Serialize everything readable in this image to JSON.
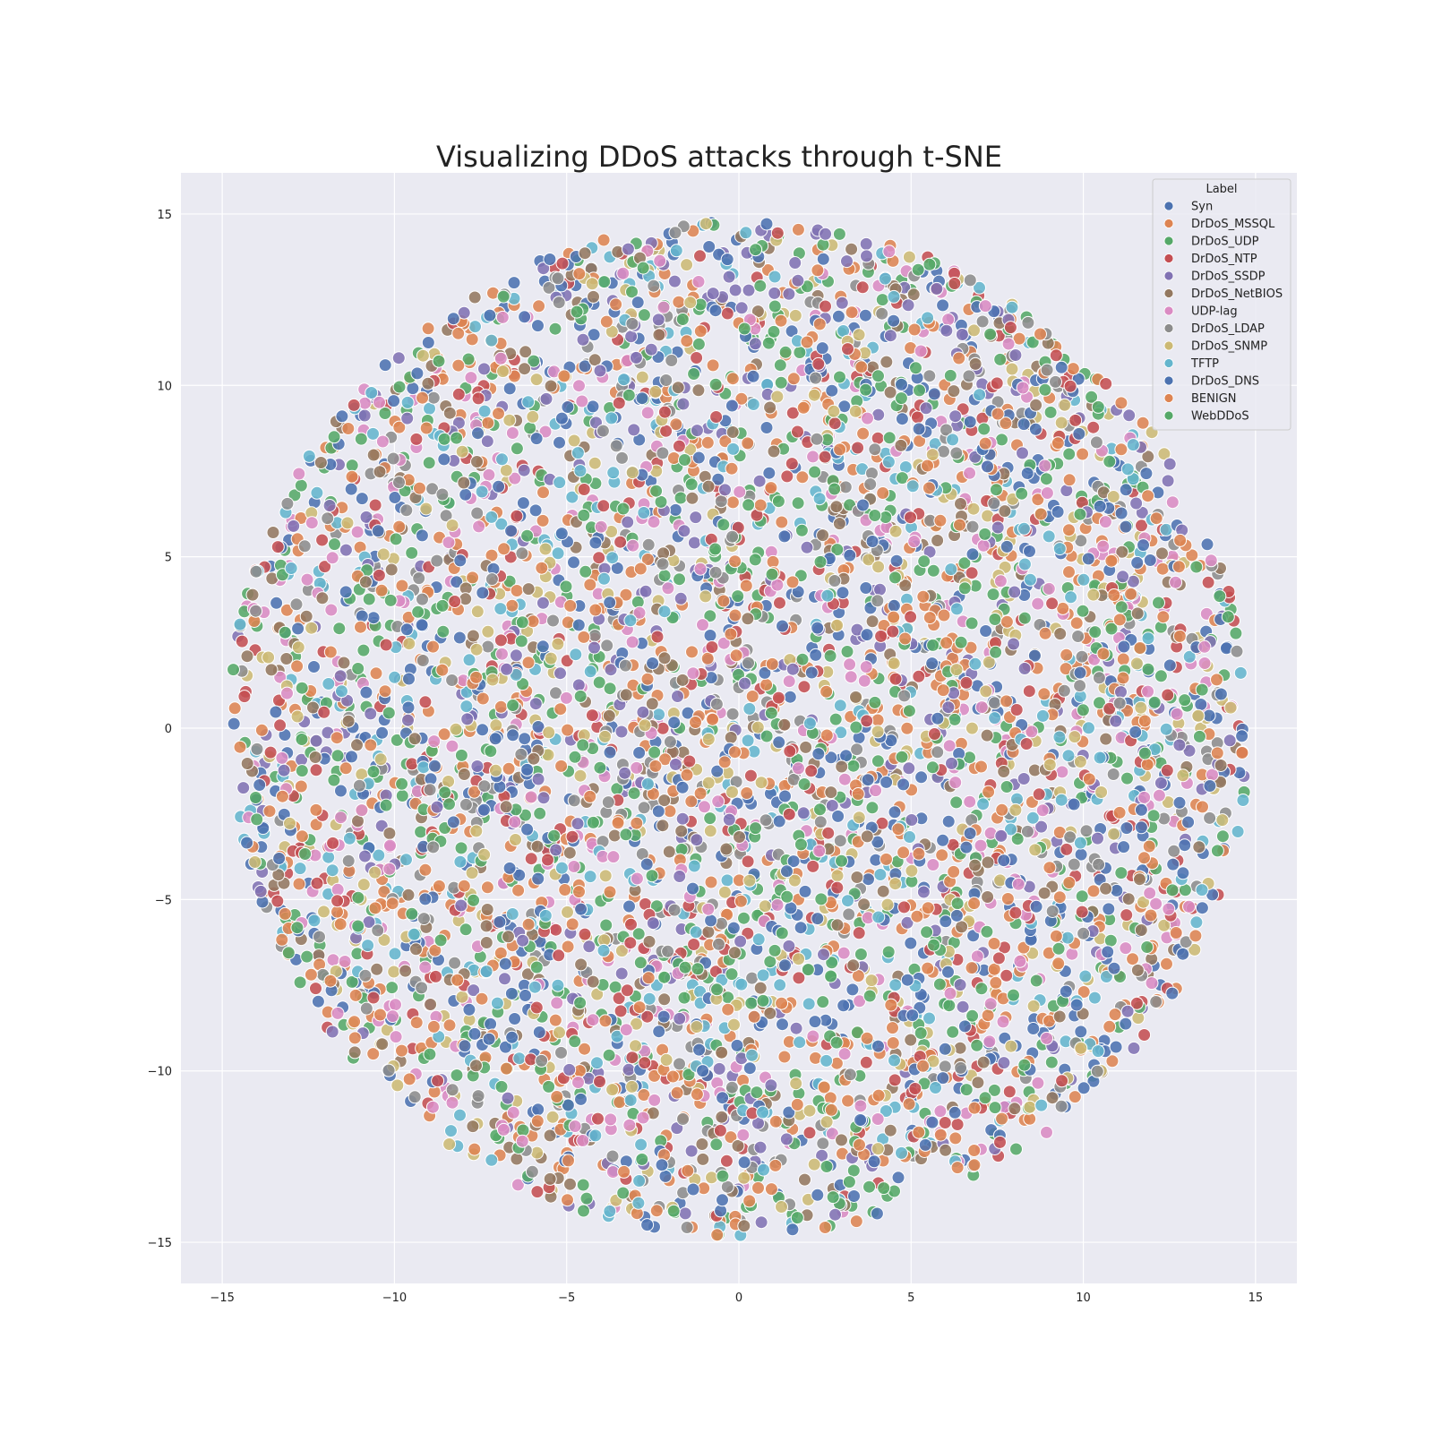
{
  "chart_data": {
    "type": "scatter",
    "title": "Visualizing DDoS attacks through t-SNE",
    "xlabel": "",
    "ylabel": "",
    "xlim": [
      -16.2,
      16.2
    ],
    "ylim": [
      -16.2,
      16.2
    ],
    "x_ticks": [
      -15,
      -10,
      -5,
      0,
      5,
      10,
      15
    ],
    "y_ticks": [
      -15,
      -10,
      -5,
      0,
      5,
      10,
      15
    ],
    "x_tick_labels": [
      "−15",
      "−10",
      "−5",
      "0",
      "5",
      "10",
      "15"
    ],
    "y_tick_labels": [
      "−15",
      "−10",
      "−5",
      "0",
      "5",
      "10",
      "15"
    ],
    "grid": true,
    "point_cloud": {
      "shape": "disc",
      "center": [
        0,
        0
      ],
      "radius": 14.8,
      "points_per_series": 420
    },
    "legend": {
      "title": "Label",
      "placement": "top-right",
      "entries": [
        {
          "name": "Syn",
          "color": "#4c72b0"
        },
        {
          "name": "DrDoS_MSSQL",
          "color": "#dd8452"
        },
        {
          "name": "DrDoS_UDP",
          "color": "#55a868"
        },
        {
          "name": "DrDoS_NTP",
          "color": "#c44e52"
        },
        {
          "name": "DrDoS_SSDP",
          "color": "#8172b3"
        },
        {
          "name": "DrDoS_NetBIOS",
          "color": "#937860"
        },
        {
          "name": "UDP-lag",
          "color": "#da8bc3"
        },
        {
          "name": "DrDoS_LDAP",
          "color": "#8c8c8c"
        },
        {
          "name": "DrDoS_SNMP",
          "color": "#ccb974"
        },
        {
          "name": "TFTP",
          "color": "#64b5cd"
        },
        {
          "name": "DrDoS_DNS",
          "color": "#4c72b0"
        },
        {
          "name": "BENIGN",
          "color": "#dd8452"
        },
        {
          "name": "WebDDoS",
          "color": "#55a868"
        }
      ]
    }
  }
}
